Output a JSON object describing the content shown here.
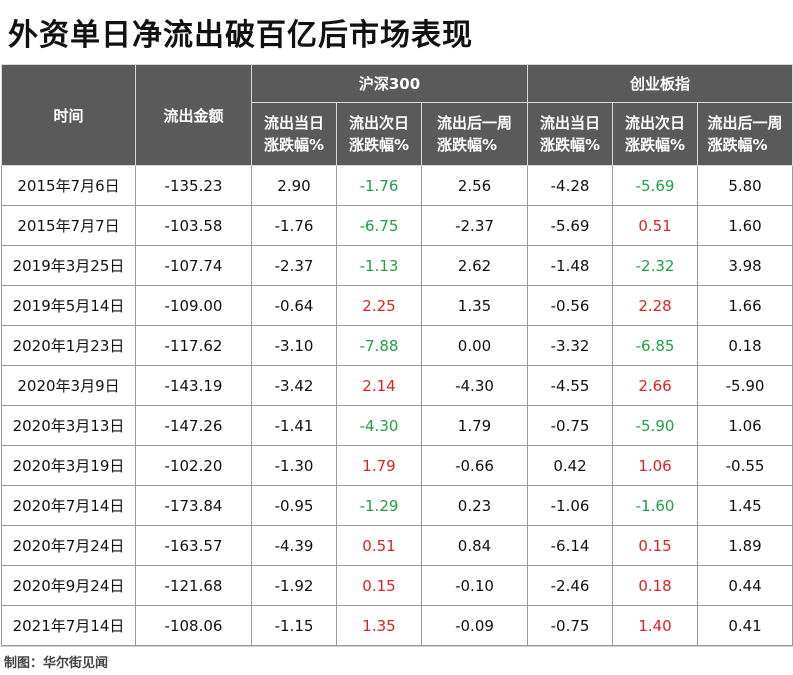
{
  "title": "外资单日净流出破百亿后市场表现",
  "headers": {
    "time": "时间",
    "amount": "流出金额",
    "group1": "沪深300",
    "group2": "创业板指",
    "sub": [
      "流出当日涨跌幅%",
      "流出次日涨跌幅%",
      "流出后一周涨跌幅%"
    ],
    "sub_lines": [
      [
        "流出当日",
        "涨跌幅%"
      ],
      [
        "流出次日",
        "涨跌幅%"
      ],
      [
        "流出后一周",
        "涨跌幅%"
      ]
    ]
  },
  "rows": [
    {
      "date": "2015年7月6日",
      "amount": "-135.23",
      "hs_day": "2.90",
      "hs_next": "-1.76",
      "hs_week": "2.56",
      "cy_day": "-4.28",
      "cy_next": "-5.69",
      "cy_week": "5.80"
    },
    {
      "date": "2015年7月7日",
      "amount": "-103.58",
      "hs_day": "-1.76",
      "hs_next": "-6.75",
      "hs_week": "-2.37",
      "cy_day": "-5.69",
      "cy_next": "0.51",
      "cy_week": "1.60"
    },
    {
      "date": "2019年3月25日",
      "amount": "-107.74",
      "hs_day": "-2.37",
      "hs_next": "-1.13",
      "hs_week": "2.62",
      "cy_day": "-1.48",
      "cy_next": "-2.32",
      "cy_week": "3.98"
    },
    {
      "date": "2019年5月14日",
      "amount": "-109.00",
      "hs_day": "-0.64",
      "hs_next": "2.25",
      "hs_week": "1.35",
      "cy_day": "-0.56",
      "cy_next": "2.28",
      "cy_week": "1.66"
    },
    {
      "date": "2020年1月23日",
      "amount": "-117.62",
      "hs_day": "-3.10",
      "hs_next": "-7.88",
      "hs_week": "0.00",
      "cy_day": "-3.32",
      "cy_next": "-6.85",
      "cy_week": "0.18"
    },
    {
      "date": "2020年3月9日",
      "amount": "-143.19",
      "hs_day": "-3.42",
      "hs_next": "2.14",
      "hs_week": "-4.30",
      "cy_day": "-4.55",
      "cy_next": "2.66",
      "cy_week": "-5.90"
    },
    {
      "date": "2020年3月13日",
      "amount": "-147.26",
      "hs_day": "-1.41",
      "hs_next": "-4.30",
      "hs_week": "1.79",
      "cy_day": "-0.75",
      "cy_next": "-5.90",
      "cy_week": "1.06"
    },
    {
      "date": "2020年3月19日",
      "amount": "-102.20",
      "hs_day": "-1.30",
      "hs_next": "1.79",
      "hs_week": "-0.66",
      "cy_day": "0.42",
      "cy_next": "1.06",
      "cy_week": "-0.55"
    },
    {
      "date": "2020年7月14日",
      "amount": "-173.84",
      "hs_day": "-0.95",
      "hs_next": "-1.29",
      "hs_week": "0.23",
      "cy_day": "-1.06",
      "cy_next": "-1.60",
      "cy_week": "1.45"
    },
    {
      "date": "2020年7月24日",
      "amount": "-163.57",
      "hs_day": "-4.39",
      "hs_next": "0.51",
      "hs_week": "0.84",
      "cy_day": "-6.14",
      "cy_next": "0.15",
      "cy_week": "1.89"
    },
    {
      "date": "2020年9月24日",
      "amount": "-121.68",
      "hs_day": "-1.92",
      "hs_next": "0.15",
      "hs_week": "-0.10",
      "cy_day": "-2.46",
      "cy_next": "0.18",
      "cy_week": "0.44"
    },
    {
      "date": "2021年7月14日",
      "amount": "-108.06",
      "hs_day": "-1.15",
      "hs_next": "1.35",
      "hs_week": "-0.09",
      "cy_day": "-0.75",
      "cy_next": "1.40",
      "cy_week": "0.41"
    }
  ],
  "colors": {
    "positive": "#e02020",
    "negative": "#1fa044",
    "header_bg": "#5a5a5a"
  },
  "footer": "制图：华尔街见闻"
}
